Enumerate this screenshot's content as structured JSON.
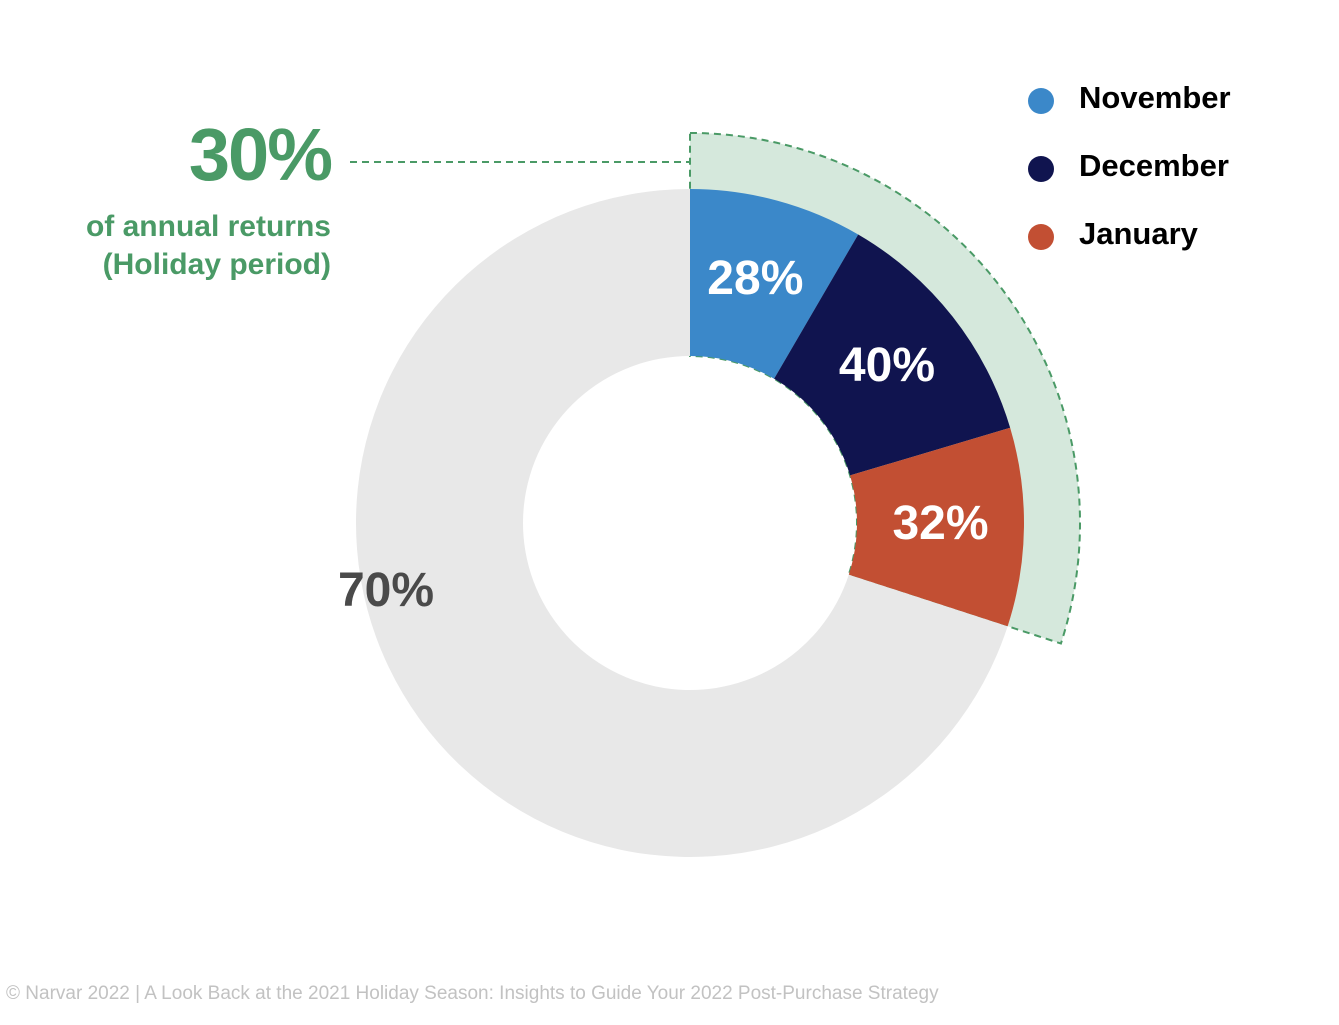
{
  "colors": {
    "november": "#3b88c9",
    "december": "#10144f",
    "january": "#c24f33",
    "rest": "#e8e8e8",
    "highlight_fill": "#d5e8dc",
    "highlight_stroke": "#4a9a66",
    "label_light": "#ffffff",
    "label_dark": "#4a4a4a"
  },
  "callout": {
    "value": "30%",
    "subtitle_line1": "of annual returns",
    "subtitle_line2": "(Holiday period)"
  },
  "legend": {
    "items": [
      {
        "label": "November",
        "color": "#3b88c9"
      },
      {
        "label": "December",
        "color": "#10144f"
      },
      {
        "label": "January",
        "color": "#c24f33"
      }
    ]
  },
  "footer": "© Narvar 2022 | A Look Back at the 2021 Holiday Season: Insights to Guide Your 2022 Post-Purchase Strategy",
  "chart_data": {
    "type": "pie",
    "variant": "donut",
    "share_of_annual_returns": [
      {
        "name": "Holiday period",
        "value": 30,
        "label": "30%"
      },
      {
        "name": "Rest of year",
        "value": 70,
        "label": "70%"
      }
    ],
    "holiday_breakdown": [
      {
        "name": "November",
        "value": 28,
        "label": "28%"
      },
      {
        "name": "December",
        "value": 40,
        "label": "40%"
      },
      {
        "name": "January",
        "value": 32,
        "label": "32%"
      }
    ],
    "legend_position": "top-right"
  }
}
